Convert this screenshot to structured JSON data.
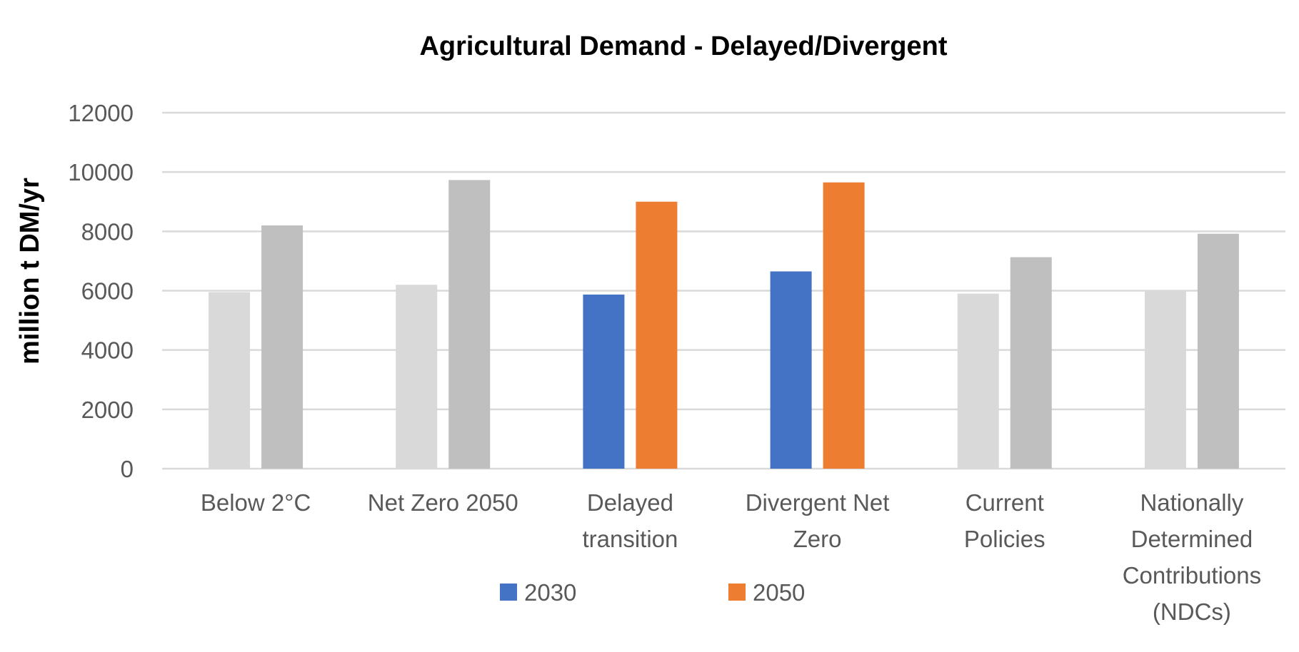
{
  "chart_data": {
    "type": "bar",
    "title": "Agricultural Demand - Delayed/Divergent",
    "xlabel": "",
    "ylabel": "million t DM/yr",
    "ylim": [
      0,
      12000
    ],
    "yticks": [
      "0",
      "2000",
      "4000",
      "6000",
      "8000",
      "10000",
      "12000"
    ],
    "grid": true,
    "legend_position": "bottom",
    "categories": [
      [
        "Below 2°C"
      ],
      [
        "Net Zero 2050"
      ],
      [
        "Delayed",
        "transition"
      ],
      [
        "Divergent Net",
        "Zero"
      ],
      [
        "Current",
        "Policies"
      ],
      [
        "Nationally",
        "Determined",
        "Contributions",
        "(NDCs)"
      ]
    ],
    "series": [
      {
        "name": "2030",
        "color": "#4472c4",
        "muted_color": "#d9d9d9",
        "values": [
          5950,
          6200,
          5870,
          6650,
          5900,
          6000
        ]
      },
      {
        "name": "2050",
        "color": "#ed7d31",
        "muted_color": "#bfbfbf",
        "values": [
          8200,
          9730,
          9000,
          9650,
          7130,
          7920
        ]
      }
    ],
    "highlighted_categories": [
      2,
      3
    ]
  }
}
